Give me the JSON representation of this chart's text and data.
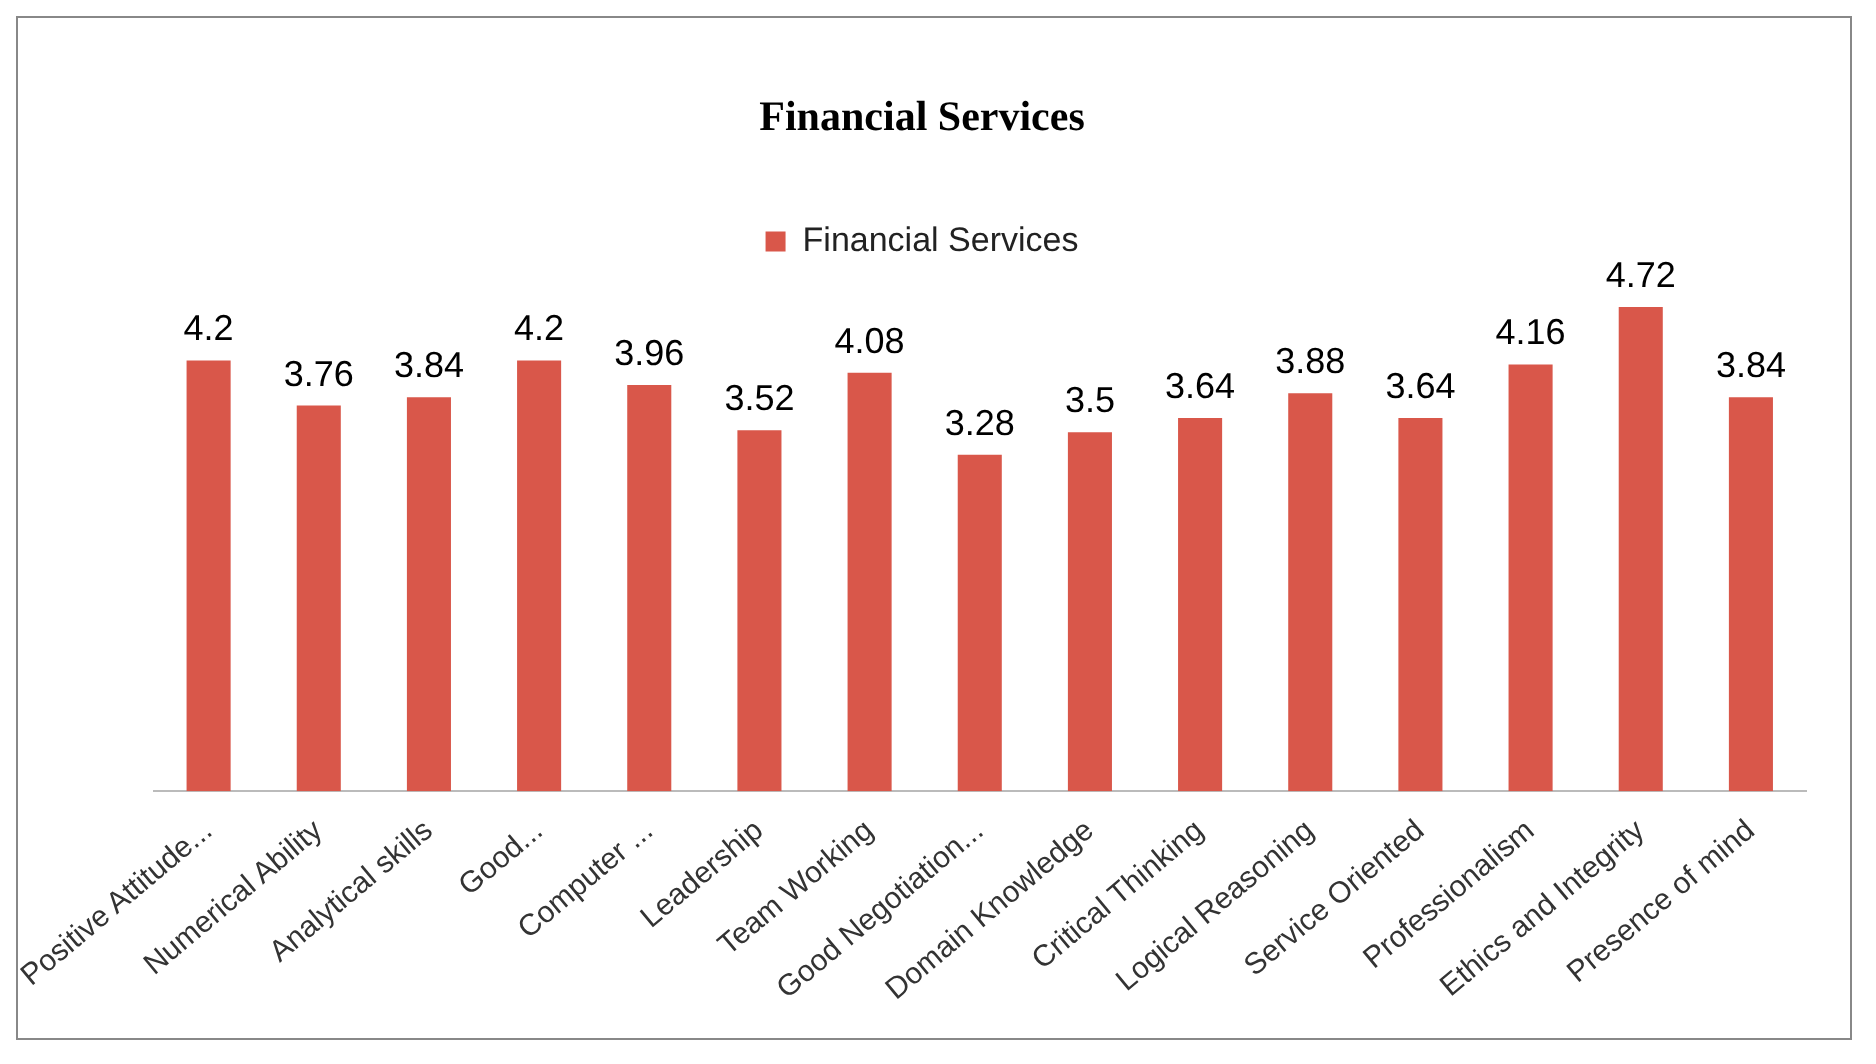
{
  "chart_data": {
    "type": "bar",
    "title": "Financial Services",
    "categories": [
      "Positive Attitude...",
      "Numerical Ability",
      "Analytical skills",
      "Good...",
      "Computer ...",
      "Leadership",
      "Team Working",
      "Good Negotiation...",
      "Domain Knowledge",
      "Critical Thinking",
      "Logical Reasoning",
      "Service Oriented",
      "Professionalism",
      "Ethics and Integrity",
      "Presence of mind"
    ],
    "series": [
      {
        "name": "Financial Services",
        "color": "#d9574a",
        "values": [
          4.2,
          3.76,
          3.84,
          4.2,
          3.96,
          3.52,
          4.08,
          3.28,
          3.5,
          3.64,
          3.88,
          3.64,
          4.16,
          4.72,
          3.84
        ]
      }
    ],
    "data_labels": true,
    "legend": "top",
    "grid": false
  }
}
